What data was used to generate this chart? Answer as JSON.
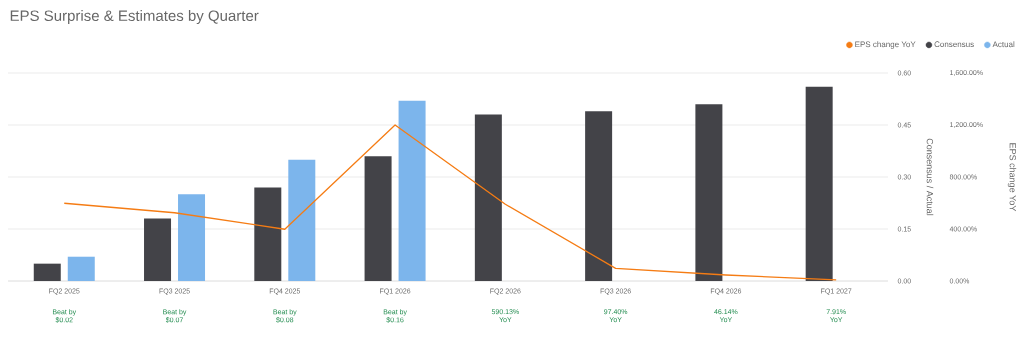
{
  "chart_data": {
    "type": "bar",
    "title": "EPS Surprise & Estimates by Quarter",
    "ylabel": "Consensus / Actual",
    "y2label": "EPS change YoY",
    "categories": [
      "FQ2 2025",
      "FQ3 2025",
      "FQ4 2025",
      "FQ1 2026",
      "FQ2 2026",
      "FQ3 2026",
      "FQ4 2026",
      "FQ1 2027"
    ],
    "series": [
      {
        "name": "EPS change YoY",
        "type": "line",
        "axis": "y2",
        "color": "#f57c14",
        "values": [
          598,
          525,
          398,
          1200,
          590.13,
          97.4,
          46.14,
          7.91
        ]
      },
      {
        "name": "Consensus",
        "color": "#434348",
        "values": [
          0.05,
          0.18,
          0.27,
          0.36,
          0.48,
          0.49,
          0.51,
          0.56
        ]
      },
      {
        "name": "Actual",
        "color": "#7cb5ec",
        "values": [
          0.07,
          0.25,
          0.35,
          0.52,
          null,
          null,
          null,
          null
        ]
      }
    ],
    "ylim": [
      0,
      0.6
    ],
    "yticks": [
      {
        "value": 0,
        "label": "0.00"
      },
      {
        "value": 0.15,
        "label": "0.15"
      },
      {
        "value": 0.3,
        "label": "0.30"
      },
      {
        "value": 0.45,
        "label": "0.45"
      },
      {
        "value": 0.6,
        "label": "0.60"
      }
    ],
    "y2lim": [
      0,
      1600
    ],
    "y2ticks": [
      {
        "value": 0,
        "label": "0.00%"
      },
      {
        "value": 400,
        "label": "400.00%"
      },
      {
        "value": 800,
        "label": "800.00%"
      },
      {
        "value": 1200,
        "label": "1,200.00%"
      },
      {
        "value": 1600,
        "label": "1,600.00%"
      }
    ],
    "grid": "y",
    "legend": "top right",
    "marker": "none",
    "annotations": [
      "Beat by $0.02",
      "Beat by $0.07",
      "Beat by $0.08",
      "Beat by $0.16",
      "590.13% YoY",
      "97.40% YoY",
      "46.14% YoY",
      "7.91% YoY"
    ]
  }
}
